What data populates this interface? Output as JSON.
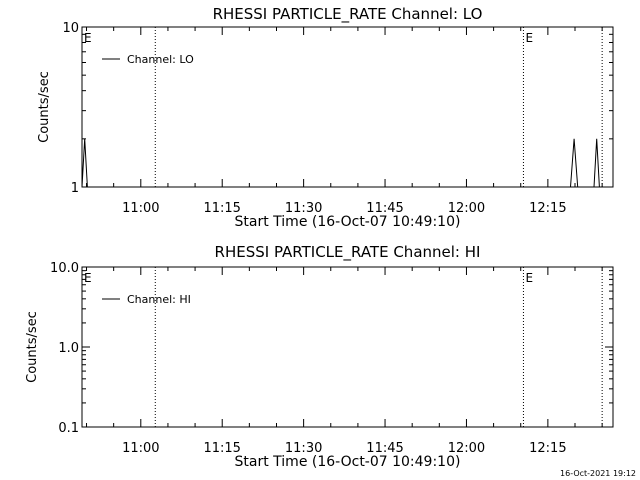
{
  "footer": {
    "timestamp": "16-Oct-2021 19:12"
  },
  "chart_data": [
    {
      "type": "line",
      "title": "RHESSI PARTICLE_RATE Channel: LO",
      "xlabel": "Start Time (16-Oct-07 10:49:10)",
      "ylabel": "Counts/sec",
      "yscale": "log",
      "xlim": [
        "10:49:10",
        "12:27:00"
      ],
      "ylim": [
        1,
        10
      ],
      "x_ticks": [
        "11:00",
        "11:15",
        "11:30",
        "11:45",
        "12:00",
        "12:15"
      ],
      "y_ticks": [
        "1",
        "10"
      ],
      "legend": {
        "entries": [
          "Channel: LO"
        ],
        "placement": "top-left"
      },
      "event_markers": [
        {
          "time": "10:49:10",
          "label": "E",
          "style": "solid"
        },
        {
          "time": "11:02:40",
          "label": "",
          "style": "dotted"
        },
        {
          "time": "12:10:30",
          "label": "E",
          "style": "dotted"
        },
        {
          "time": "12:25:00",
          "label": "",
          "style": "dotted"
        }
      ],
      "series": [
        {
          "name": "Channel: LO",
          "x": [
            "10:49:10",
            "10:49:40",
            "10:50:10",
            "12:19:10",
            "12:19:50",
            "12:20:30",
            "12:23:30",
            "12:24:00",
            "12:24:30"
          ],
          "y": [
            1,
            2,
            1,
            1,
            2,
            1,
            1,
            2,
            1
          ]
        }
      ]
    },
    {
      "type": "line",
      "title": "RHESSI PARTICLE_RATE Channel: HI",
      "xlabel": "Start Time (16-Oct-07 10:49:10)",
      "ylabel": "Counts/sec",
      "yscale": "log",
      "xlim": [
        "10:49:10",
        "12:27:00"
      ],
      "ylim": [
        0.1,
        10
      ],
      "x_ticks": [
        "11:00",
        "11:15",
        "11:30",
        "11:45",
        "12:00",
        "12:15"
      ],
      "y_ticks": [
        "0.1",
        "1.0",
        "10.0"
      ],
      "legend": {
        "entries": [
          "Channel: HI"
        ],
        "placement": "top-left"
      },
      "event_markers": [
        {
          "time": "10:49:10",
          "label": "E",
          "style": "solid"
        },
        {
          "time": "11:02:40",
          "label": "",
          "style": "dotted"
        },
        {
          "time": "12:10:30",
          "label": "E",
          "style": "dotted"
        },
        {
          "time": "12:25:00",
          "label": "",
          "style": "dotted"
        }
      ],
      "series": [
        {
          "name": "Channel: HI",
          "x": [],
          "y": []
        }
      ]
    }
  ]
}
